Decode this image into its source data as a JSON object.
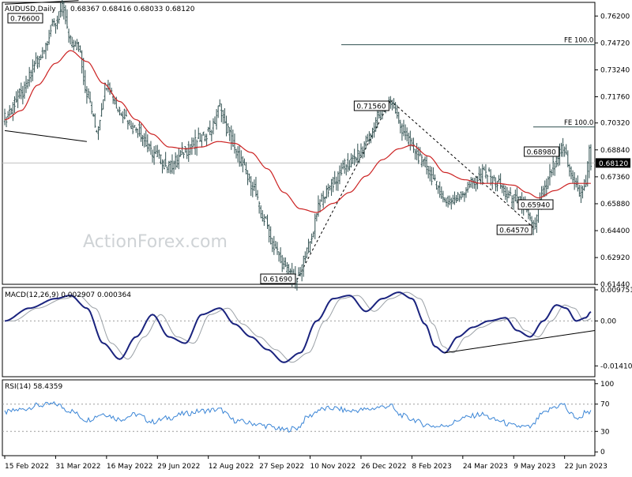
{
  "chart_data": {
    "type": "candlestick",
    "symbol_label": "AUDUSD,Daily",
    "ohlc_label": "0.68367 0.68416 0.68033 0.68120",
    "watermark": "ActionForex.com",
    "x_tick_labels": [
      "15 Feb 2022",
      "31 Mar 2022",
      "16 May 2022",
      "29 Jun 2022",
      "12 Aug 2022",
      "27 Sep 2022",
      "10 Nov 2022",
      "26 Dec 2022",
      "8 Feb 2023",
      "24 Mar 2023",
      "9 May 2023",
      "22 Jun 2023"
    ],
    "x_tick_index": [
      0,
      31,
      62,
      93,
      124,
      155,
      186,
      217,
      248,
      279,
      310,
      341
    ],
    "bar_count": 358,
    "colors": {
      "price": "#2f4f4f",
      "ma": "#cc2222",
      "macd": "#1a237e",
      "signal": "#9aa0a6",
      "rsi": "#3a85d6"
    },
    "price_panel": {
      "ylim": [
        0.6145,
        0.7695
      ],
      "y_tick_labels": [
        "0.76200",
        "0.74720",
        "0.73240",
        "0.71760",
        "0.70320",
        "0.68840",
        "0.67360",
        "0.65880",
        "0.64400",
        "0.62920",
        "0.61440"
      ],
      "y_tick_values": [
        0.762,
        0.7472,
        0.7324,
        0.7176,
        0.7032,
        0.6884,
        0.6736,
        0.6588,
        0.644,
        0.6292,
        0.6144
      ],
      "current_price_label": "0.68120",
      "current_price": 0.6812,
      "anchors": [
        [
          0,
          0.706
        ],
        [
          10,
          0.719
        ],
        [
          20,
          0.738
        ],
        [
          31,
          0.758
        ],
        [
          35,
          0.766
        ],
        [
          40,
          0.748
        ],
        [
          45,
          0.745
        ],
        [
          50,
          0.72
        ],
        [
          56,
          0.7
        ],
        [
          62,
          0.725
        ],
        [
          70,
          0.71
        ],
        [
          80,
          0.7
        ],
        [
          90,
          0.687
        ],
        [
          100,
          0.679
        ],
        [
          110,
          0.688
        ],
        [
          120,
          0.695
        ],
        [
          126,
          0.7
        ],
        [
          131,
          0.712
        ],
        [
          135,
          0.7
        ],
        [
          142,
          0.685
        ],
        [
          150,
          0.67
        ],
        [
          158,
          0.65
        ],
        [
          165,
          0.633
        ],
        [
          172,
          0.622
        ],
        [
          178,
          0.6169
        ],
        [
          185,
          0.635
        ],
        [
          192,
          0.66
        ],
        [
          200,
          0.67
        ],
        [
          208,
          0.68
        ],
        [
          215,
          0.685
        ],
        [
          222,
          0.695
        ],
        [
          228,
          0.708
        ],
        [
          235,
          0.7156
        ],
        [
          242,
          0.7
        ],
        [
          248,
          0.69
        ],
        [
          256,
          0.68
        ],
        [
          264,
          0.668
        ],
        [
          268,
          0.66
        ],
        [
          275,
          0.662
        ],
        [
          285,
          0.67
        ],
        [
          292,
          0.676
        ],
        [
          300,
          0.67
        ],
        [
          308,
          0.662
        ],
        [
          315,
          0.6594
        ],
        [
          322,
          0.6457
        ],
        [
          328,
          0.665
        ],
        [
          335,
          0.68
        ],
        [
          340,
          0.6898
        ],
        [
          345,
          0.675
        ],
        [
          350,
          0.665
        ],
        [
          354,
          0.67
        ],
        [
          356,
          0.688
        ],
        [
          357,
          0.6812
        ]
      ],
      "moving_average_anchors": [
        [
          0,
          0.705
        ],
        [
          10,
          0.71
        ],
        [
          20,
          0.724
        ],
        [
          31,
          0.736
        ],
        [
          40,
          0.743
        ],
        [
          50,
          0.737
        ],
        [
          60,
          0.725
        ],
        [
          70,
          0.715
        ],
        [
          80,
          0.705
        ],
        [
          90,
          0.697
        ],
        [
          100,
          0.69
        ],
        [
          110,
          0.689
        ],
        [
          120,
          0.69
        ],
        [
          130,
          0.693
        ],
        [
          140,
          0.692
        ],
        [
          150,
          0.687
        ],
        [
          160,
          0.678
        ],
        [
          170,
          0.665
        ],
        [
          180,
          0.656
        ],
        [
          190,
          0.654
        ],
        [
          200,
          0.659
        ],
        [
          210,
          0.665
        ],
        [
          220,
          0.674
        ],
        [
          230,
          0.683
        ],
        [
          240,
          0.689
        ],
        [
          248,
          0.691
        ],
        [
          258,
          0.685
        ],
        [
          268,
          0.676
        ],
        [
          280,
          0.672
        ],
        [
          290,
          0.67
        ],
        [
          300,
          0.67
        ],
        [
          310,
          0.669
        ],
        [
          318,
          0.665
        ],
        [
          325,
          0.662
        ],
        [
          335,
          0.666
        ],
        [
          345,
          0.67
        ],
        [
          357,
          0.67
        ]
      ],
      "annotations": [
        {
          "label": "0.76600",
          "index": 35,
          "price": 0.766,
          "side": "left"
        },
        {
          "label": "0.71560",
          "index": 235,
          "price": 0.7156,
          "side": "left"
        },
        {
          "label": "0.61690",
          "index": 178,
          "price": 0.6169,
          "side": "left"
        },
        {
          "label": "0.68980",
          "index": 340,
          "price": 0.6898,
          "side": "left"
        },
        {
          "label": "0.65940",
          "index": 315,
          "price": 0.6594,
          "side": "right"
        },
        {
          "label": "0.64570",
          "index": 322,
          "price": 0.6457,
          "side": "left"
        }
      ],
      "trend_lines": [
        {
          "from": [
            0,
            0.7685
          ],
          "to": [
            45,
            0.7705
          ],
          "style": "solid"
        },
        {
          "from": [
            0,
            0.699
          ],
          "to": [
            50,
            0.693
          ],
          "style": "solid"
        },
        {
          "from": [
            178,
            0.6169
          ],
          "to": [
            235,
            0.7156
          ],
          "style": "dashed"
        },
        {
          "from": [
            235,
            0.7156
          ],
          "to": [
            322,
            0.6457
          ],
          "style": "dashed"
        }
      ],
      "levels": [
        {
          "label": "FE 100.0",
          "value": 0.7462,
          "from_index": 205,
          "to_index": 357
        },
        {
          "label": "FE 100.0",
          "value": 0.701,
          "from_index": 400,
          "to_index": 357
        }
      ]
    },
    "macd_panel": {
      "label": "MACD(12,26,9) 0.002907 0.000364",
      "ylim": [
        -0.0175,
        0.0105
      ],
      "y_tick_labels": [
        "0.009751",
        "0.00",
        "-0.014107"
      ],
      "y_tick_values": [
        0.009751,
        0.0,
        -0.014107
      ],
      "anchors": [
        [
          0,
          0.0
        ],
        [
          15,
          0.004
        ],
        [
          31,
          0.007
        ],
        [
          40,
          0.008
        ],
        [
          50,
          0.004
        ],
        [
          60,
          -0.007
        ],
        [
          70,
          -0.012
        ],
        [
          80,
          -0.005
        ],
        [
          90,
          0.002
        ],
        [
          100,
          -0.005
        ],
        [
          110,
          -0.007
        ],
        [
          120,
          0.002
        ],
        [
          131,
          0.004
        ],
        [
          140,
          -0.001
        ],
        [
          150,
          -0.005
        ],
        [
          160,
          -0.009
        ],
        [
          170,
          -0.013
        ],
        [
          180,
          -0.01
        ],
        [
          190,
          0.0
        ],
        [
          200,
          0.007
        ],
        [
          210,
          0.008
        ],
        [
          220,
          0.003
        ],
        [
          230,
          0.007
        ],
        [
          240,
          0.009
        ],
        [
          248,
          0.007
        ],
        [
          256,
          -0.001
        ],
        [
          262,
          -0.008
        ],
        [
          268,
          -0.01
        ],
        [
          276,
          -0.005
        ],
        [
          285,
          -0.002
        ],
        [
          295,
          0.0
        ],
        [
          305,
          0.001
        ],
        [
          312,
          -0.003
        ],
        [
          320,
          -0.005
        ],
        [
          328,
          0.0
        ],
        [
          336,
          0.005
        ],
        [
          342,
          0.004
        ],
        [
          348,
          0.0
        ],
        [
          354,
          0.001
        ],
        [
          357,
          0.0029
        ]
      ],
      "trend_line": {
        "from": [
          268,
          -0.01
        ],
        "to": [
          357,
          -0.003
        ]
      }
    },
    "rsi_panel": {
      "label": "RSI(14) 58.4359",
      "ylim": [
        0,
        100
      ],
      "y_tick_labels": [
        "100",
        "70",
        "30",
        "0"
      ],
      "y_tick_values": [
        100,
        70,
        30,
        0
      ],
      "anchors": [
        [
          0,
          58
        ],
        [
          10,
          62
        ],
        [
          20,
          68
        ],
        [
          31,
          70
        ],
        [
          40,
          60
        ],
        [
          50,
          47
        ],
        [
          60,
          56
        ],
        [
          70,
          48
        ],
        [
          80,
          55
        ],
        [
          90,
          44
        ],
        [
          100,
          50
        ],
        [
          110,
          56
        ],
        [
          120,
          60
        ],
        [
          131,
          62
        ],
        [
          140,
          46
        ],
        [
          150,
          42
        ],
        [
          160,
          38
        ],
        [
          170,
          32
        ],
        [
          178,
          35
        ],
        [
          185,
          52
        ],
        [
          192,
          62
        ],
        [
          200,
          64
        ],
        [
          210,
          60
        ],
        [
          220,
          62
        ],
        [
          230,
          66
        ],
        [
          235,
          68
        ],
        [
          240,
          55
        ],
        [
          248,
          48
        ],
        [
          256,
          40
        ],
        [
          264,
          37
        ],
        [
          270,
          40
        ],
        [
          280,
          50
        ],
        [
          290,
          55
        ],
        [
          300,
          46
        ],
        [
          310,
          38
        ],
        [
          320,
          36
        ],
        [
          328,
          56
        ],
        [
          335,
          66
        ],
        [
          340,
          70
        ],
        [
          345,
          55
        ],
        [
          350,
          48
        ],
        [
          354,
          60
        ],
        [
          357,
          58
        ]
      ]
    }
  }
}
